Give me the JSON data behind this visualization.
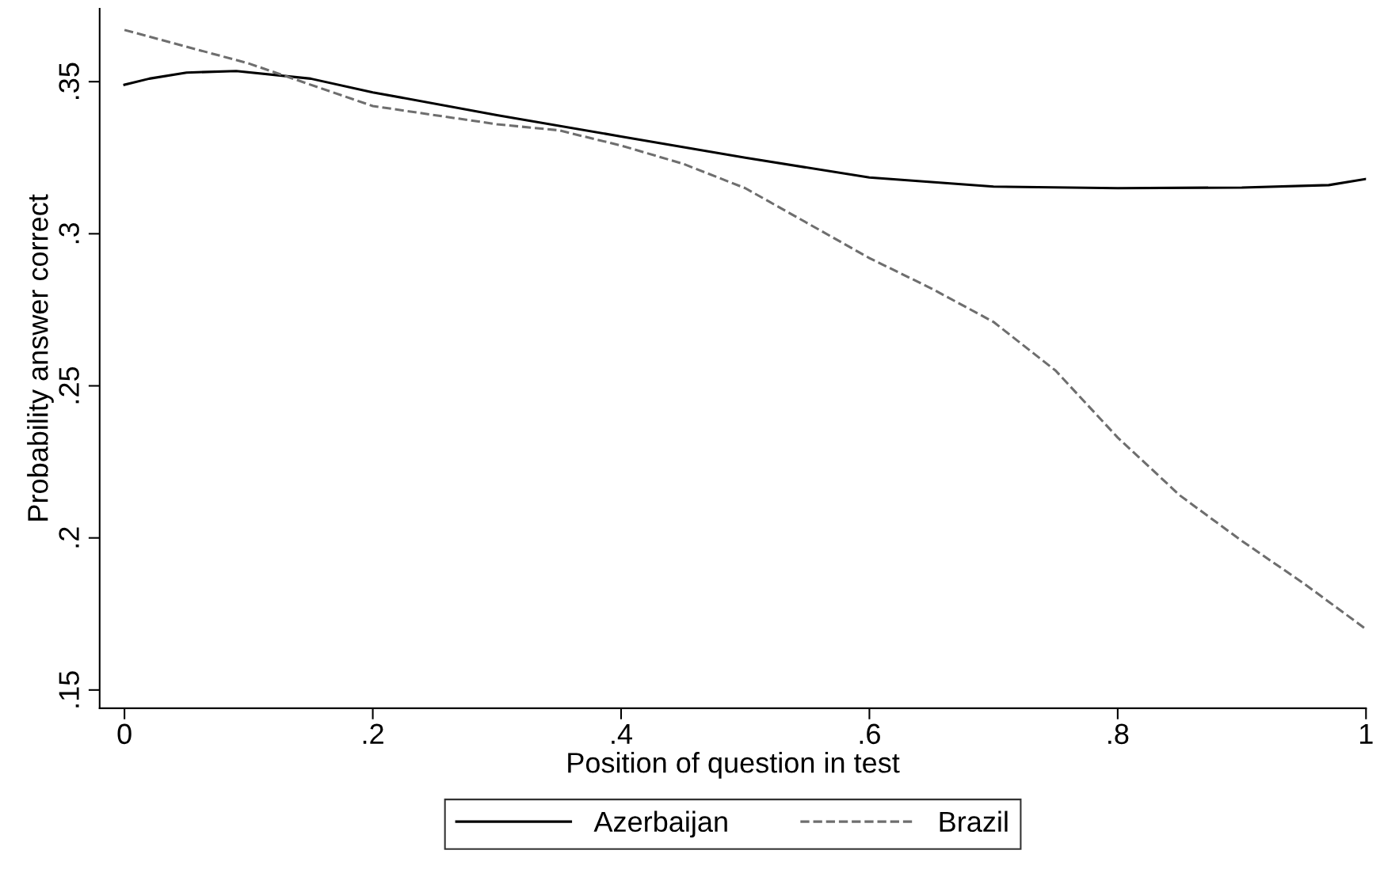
{
  "chart_data": {
    "type": "line",
    "xlabel": "Position of question in test",
    "ylabel": "Probability answer correct",
    "xlim": [
      -0.02,
      1.0
    ],
    "ylim": [
      0.144,
      0.374
    ],
    "xticks": [
      {
        "value": 0,
        "label": "0"
      },
      {
        "value": 0.2,
        "label": ".2"
      },
      {
        "value": 0.4,
        "label": ".4"
      },
      {
        "value": 0.6,
        "label": ".6"
      },
      {
        "value": 0.8,
        "label": ".8"
      },
      {
        "value": 1,
        "label": "1"
      }
    ],
    "yticks": [
      {
        "value": 0.15,
        "label": ".15"
      },
      {
        "value": 0.2,
        "label": ".2"
      },
      {
        "value": 0.25,
        "label": ".25"
      },
      {
        "value": 0.3,
        "label": ".3"
      },
      {
        "value": 0.35,
        "label": ".35"
      }
    ],
    "grid": false,
    "legend": "bottom",
    "marker": "none",
    "series": [
      {
        "name": "Azerbaijan",
        "color": "#000000",
        "line_style": "solid",
        "x": [
          0,
          0.02,
          0.05,
          0.09,
          0.15,
          0.2,
          0.3,
          0.4,
          0.5,
          0.6,
          0.7,
          0.8,
          0.9,
          0.97,
          1
        ],
        "values": [
          0.349,
          0.351,
          0.353,
          0.3535,
          0.351,
          0.3465,
          0.339,
          0.332,
          0.325,
          0.3185,
          0.3155,
          0.315,
          0.3152,
          0.316,
          0.318
        ]
      },
      {
        "name": "Brazil",
        "color": "#6e6e6e",
        "line_style": "dashed",
        "x": [
          0,
          0.1,
          0.2,
          0.3,
          0.35,
          0.4,
          0.45,
          0.5,
          0.6,
          0.65,
          0.7,
          0.75,
          0.8,
          0.85,
          0.9,
          0.95,
          1
        ],
        "values": [
          0.367,
          0.356,
          0.342,
          0.336,
          0.334,
          0.329,
          0.323,
          0.315,
          0.292,
          0.282,
          0.271,
          0.255,
          0.233,
          0.214,
          0.199,
          0.185,
          0.17
        ]
      }
    ]
  }
}
